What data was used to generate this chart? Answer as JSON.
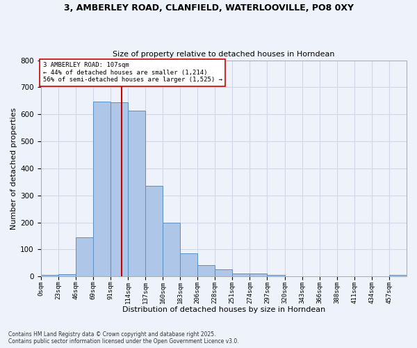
{
  "title_line1": "3, AMBERLEY ROAD, CLANFIELD, WATERLOOVILLE, PO8 0XY",
  "title_line2": "Size of property relative to detached houses in Horndean",
  "xlabel": "Distribution of detached houses by size in Horndean",
  "ylabel": "Number of detached properties",
  "bin_labels": [
    "0sqm",
    "23sqm",
    "46sqm",
    "69sqm",
    "91sqm",
    "114sqm",
    "137sqm",
    "160sqm",
    "183sqm",
    "206sqm",
    "228sqm",
    "251sqm",
    "274sqm",
    "297sqm",
    "320sqm",
    "343sqm",
    "366sqm",
    "388sqm",
    "411sqm",
    "434sqm",
    "457sqm"
  ],
  "bar_heights": [
    5,
    8,
    145,
    648,
    644,
    613,
    335,
    200,
    85,
    42,
    26,
    10,
    12,
    5,
    0,
    0,
    0,
    0,
    0,
    0,
    5
  ],
  "bar_color": "#aec6e8",
  "bar_edge_color": "#5a8fc2",
  "vline_x": 107,
  "vline_color": "#cc0000",
  "annotation_text": "3 AMBERLEY ROAD: 107sqm\n← 44% of detached houses are smaller (1,214)\n56% of semi-detached houses are larger (1,525) →",
  "annotation_box_color": "#ffffff",
  "annotation_box_edge_color": "#cc0000",
  "ylim": [
    0,
    800
  ],
  "yticks": [
    0,
    100,
    200,
    300,
    400,
    500,
    600,
    700,
    800
  ],
  "grid_color": "#d0d8e8",
  "background_color": "#eef2fa",
  "footer_line1": "Contains HM Land Registry data © Crown copyright and database right 2025.",
  "footer_line2": "Contains public sector information licensed under the Open Government Licence v3.0.",
  "bin_width": 23
}
